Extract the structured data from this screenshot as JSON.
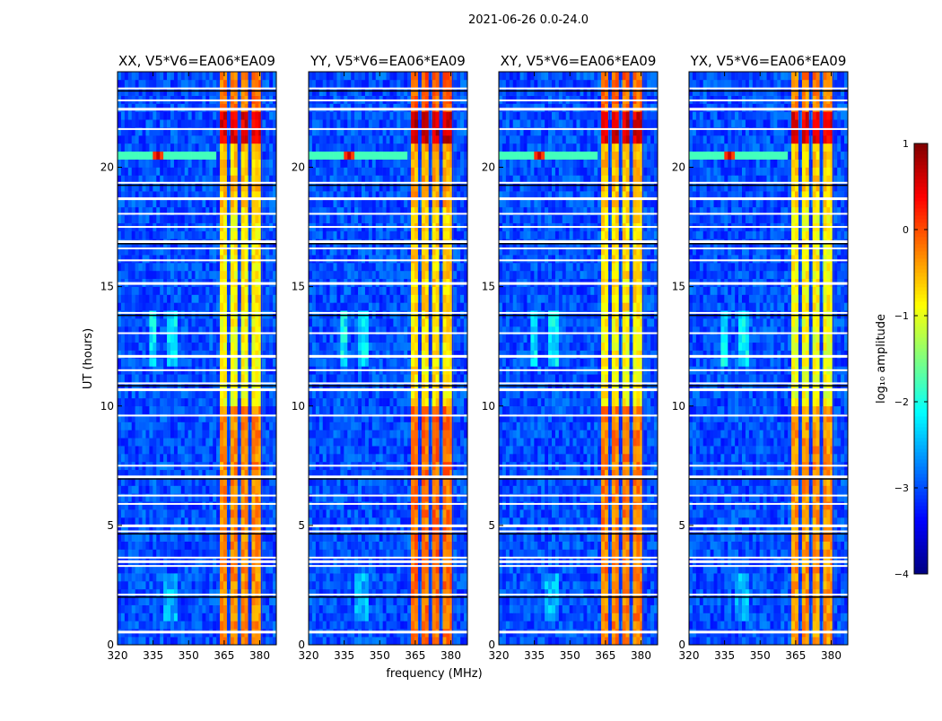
{
  "chart_data": {
    "type": "heatmap",
    "suptitle": "2021-06-26 0.0-24.0",
    "xlabel": "frequency (MHz)",
    "ylabel": "UT (hours)",
    "xlim": [
      320,
      387
    ],
    "ylim": [
      0,
      24
    ],
    "xticks": [
      320,
      335,
      350,
      365,
      380
    ],
    "yticks": [
      0,
      5,
      10,
      15,
      20
    ],
    "panels": [
      {
        "title": "XX, V5*V6=EA06*EA09",
        "band_offset": 0.0
      },
      {
        "title": "YY, V5*V6=EA06*EA09",
        "band_offset": 0.15
      },
      {
        "title": "XY, V5*V6=EA06*EA09",
        "band_offset": 0.05
      },
      {
        "title": "YX, V5*V6=EA06*EA09",
        "band_offset": -0.05
      }
    ],
    "background_level": -3.0,
    "rfi_bands_mhz": [
      [
        362.5,
        366.5
      ],
      [
        367,
        371
      ],
      [
        371.5,
        375.5
      ],
      [
        376,
        380.5
      ]
    ],
    "rfi_band_levels": [
      {
        "from": 0,
        "to": 10,
        "level": -0.3
      },
      {
        "from": 10,
        "to": 14,
        "level": -0.9
      },
      {
        "from": 14,
        "to": 18.5,
        "level": -0.8
      },
      {
        "from": 18.5,
        "to": 21,
        "level": -0.6
      },
      {
        "from": 21,
        "to": 22.3,
        "level": 0.5
      },
      {
        "from": 22.3,
        "to": 24,
        "level": -0.2
      }
    ],
    "point_source": {
      "freq_mhz": 337,
      "ut_hours": 20.5,
      "level": 0.7
    },
    "flagged_hours": [
      0.55,
      2.1,
      3.3,
      3.5,
      3.65,
      4.75,
      5.0,
      5.9,
      6.25,
      7.05,
      7.5,
      9.6,
      10.7,
      10.95,
      11.5,
      12.1,
      13.05,
      13.9,
      15.15,
      16.1,
      16.6,
      16.9,
      17.5,
      18.05,
      18.7,
      19.35,
      21.6,
      22.45,
      22.8,
      23.3
    ],
    "colorbar": {
      "label": "log₁₀ amplitude",
      "range": [
        -4,
        1
      ],
      "ticks": [
        1,
        0,
        -1,
        -2,
        -3,
        -4
      ],
      "tick_labels": [
        "1",
        "0",
        "−1",
        "−2",
        "−3",
        "−4"
      ],
      "colormap": "jet"
    }
  }
}
